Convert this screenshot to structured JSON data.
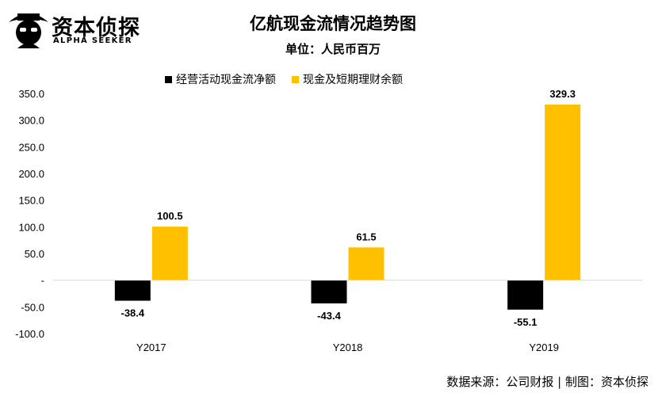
{
  "logo": {
    "name": "资本侦探",
    "subtitle": "ALPHA SEEKER"
  },
  "source_note": "数据来源：公司财报 | 制图：资本侦探",
  "chart_data": {
    "type": "bar",
    "title": "亿航现金流情况趋势图",
    "subtitle": "单位：人民币百万",
    "categories": [
      "Y2017",
      "Y2018",
      "Y2019"
    ],
    "series": [
      {
        "name": "经营活动现金流净额",
        "color": "#000000",
        "values": [
          -38.4,
          -43.4,
          -55.1
        ],
        "labels": [
          "-38.4",
          "-43.4",
          "-55.1"
        ]
      },
      {
        "name": "现金及短期理财余额",
        "color": "#FFC000",
        "values": [
          100.5,
          61.5,
          329.3
        ],
        "labels": [
          "100.5",
          "61.5",
          "329.3"
        ]
      }
    ],
    "yticks": [
      350,
      300,
      250,
      200,
      150,
      100,
      50,
      0,
      -50,
      -100
    ],
    "ytick_labels": [
      "350.0",
      "300.0",
      "250.0",
      "200.0",
      "150.0",
      "100.0",
      "50.0",
      "-",
      "-50.0",
      "-100.0"
    ],
    "ylim": [
      -100,
      350
    ],
    "legend_position": "top",
    "grid": false
  }
}
